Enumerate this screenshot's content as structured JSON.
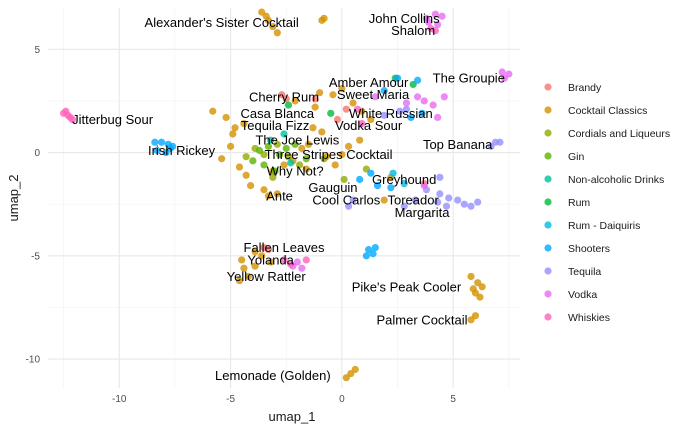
{
  "chart_data": {
    "type": "scatter",
    "title": "",
    "xlabel": "umap_1",
    "ylabel": "umap_2",
    "xlim": [
      -13.2,
      8.0
    ],
    "ylim": [
      -11.4,
      7.0
    ],
    "x_ticks": [
      -10,
      -5,
      0,
      5
    ],
    "y_ticks": [
      -10,
      -5,
      0,
      5
    ],
    "x_tick_labels": [
      "-10",
      "-5",
      "0",
      "5"
    ],
    "y_tick_labels": [
      "-10",
      "-5",
      "0",
      "5"
    ],
    "grid": true,
    "legend_position": "right",
    "series": [
      {
        "name": "Brandy",
        "color": "#F8766D",
        "points": [
          [
            -2.7,
            2.8
          ],
          [
            -2.5,
            2.6
          ],
          [
            -3.5,
            -4.6
          ],
          [
            -3.3,
            -4.7
          ],
          [
            -1.2,
            2.6
          ],
          [
            3.7,
            -1.5
          ],
          [
            -0.2,
            1.6
          ],
          [
            0.2,
            2.1
          ]
        ]
      },
      {
        "name": "Cocktail Classics",
        "color": "#D39200",
        "points": [
          [
            -3.6,
            6.8
          ],
          [
            -3.4,
            6.6
          ],
          [
            -3.3,
            6.4
          ],
          [
            -3.1,
            6.1
          ],
          [
            -2.9,
            5.8
          ],
          [
            -0.9,
            6.4
          ],
          [
            -0.8,
            6.5
          ],
          [
            -5.8,
            2.0
          ],
          [
            -5.2,
            1.7
          ],
          [
            -4.8,
            1.2
          ],
          [
            -4.4,
            1.4
          ],
          [
            -4.9,
            0.9
          ],
          [
            -5.0,
            0.3
          ],
          [
            -5.4,
            -0.3
          ],
          [
            -4.6,
            -0.7
          ],
          [
            -4.3,
            -1.1
          ],
          [
            -4.1,
            -1.6
          ],
          [
            -3.5,
            -1.8
          ],
          [
            -3.3,
            -2.1
          ],
          [
            -2.9,
            -2.0
          ],
          [
            -3.1,
            -0.9
          ],
          [
            -2.6,
            -0.6
          ],
          [
            -2.2,
            -0.4
          ],
          [
            -1.8,
            0.2
          ],
          [
            -1.5,
            0.4
          ],
          [
            -1.3,
            1.2
          ],
          [
            -0.9,
            1.0
          ],
          [
            -1.2,
            2.2
          ],
          [
            -2.1,
            2.5
          ],
          [
            -1.0,
            2.9
          ],
          [
            -0.4,
            2.8
          ],
          [
            0.0,
            3.1
          ],
          [
            0.5,
            2.4
          ],
          [
            0.9,
            2.0
          ],
          [
            1.3,
            1.6
          ],
          [
            0.8,
            0.6
          ],
          [
            0.3,
            0.3
          ],
          [
            0.0,
            -0.1
          ],
          [
            -0.3,
            -0.6
          ],
          [
            -0.7,
            -0.2
          ],
          [
            -1.6,
            -0.8
          ],
          [
            -4.5,
            -5.2
          ],
          [
            -4.4,
            -5.6
          ],
          [
            -4.2,
            -6.0
          ],
          [
            -3.9,
            -5.5
          ],
          [
            -3.6,
            -5.0
          ],
          [
            -3.2,
            -5.3
          ],
          [
            -3.9,
            -4.8
          ],
          [
            -4.6,
            -6.2
          ],
          [
            5.8,
            -6.0
          ],
          [
            6.1,
            -6.3
          ],
          [
            6.3,
            -6.5
          ],
          [
            6.0,
            -6.8
          ],
          [
            5.9,
            -6.6
          ],
          [
            6.2,
            -7.0
          ],
          [
            5.8,
            -8.1
          ],
          [
            6.0,
            -7.9
          ],
          [
            0.4,
            -10.7
          ],
          [
            0.6,
            -10.5
          ],
          [
            0.2,
            -10.9
          ],
          [
            1.9,
            -2.3
          ],
          [
            2.2,
            -1.2
          ]
        ]
      },
      {
        "name": "Cordials and Liqueurs",
        "color": "#93AA00",
        "points": [
          [
            -3.9,
            0.2
          ],
          [
            -3.5,
            -0.1
          ],
          [
            -2.9,
            0.4
          ],
          [
            -2.4,
            -0.2
          ],
          [
            -1.9,
            -0.6
          ],
          [
            -0.8,
            -0.3
          ],
          [
            0.1,
            -1.3
          ],
          [
            -4.3,
            -0.2
          ],
          [
            -3.1,
            -1.2
          ],
          [
            1.1,
            -0.8
          ]
        ]
      },
      {
        "name": "Gin",
        "color": "#5BB300",
        "points": [
          [
            -3.7,
            0.1
          ],
          [
            -3.3,
            0.3
          ],
          [
            -2.8,
            -0.1
          ],
          [
            -2.5,
            0.2
          ],
          [
            -2.1,
            0.4
          ],
          [
            -3.5,
            -0.6
          ],
          [
            -3.0,
            -0.9
          ],
          [
            -1.6,
            -0.3
          ],
          [
            -4.0,
            -0.4
          ]
        ]
      },
      {
        "name": "Non-alcoholic Drinks",
        "color": "#00C19F",
        "points": [
          [
            -3.2,
            0.6
          ],
          [
            -2.6,
            0.9
          ],
          [
            -2.3,
            -0.5
          ]
        ]
      },
      {
        "name": "Rum",
        "color": "#00BA38",
        "points": [
          [
            -2.4,
            2.3
          ],
          [
            2.4,
            3.6
          ],
          [
            3.2,
            3.3
          ],
          [
            -0.5,
            1.9
          ]
        ]
      },
      {
        "name": "Rum - Daiquiris",
        "color": "#00B9E3",
        "points": [
          [
            2.3,
            -1.0
          ],
          [
            2.8,
            -1.5
          ]
        ]
      },
      {
        "name": "Shooters",
        "color": "#00A9FF",
        "points": [
          [
            -8.4,
            0.5
          ],
          [
            -8.1,
            0.5
          ],
          [
            -7.8,
            0.4
          ],
          [
            -7.6,
            0.3
          ],
          [
            -8.3,
            0.1
          ],
          [
            -7.9,
            0.0
          ],
          [
            -7.7,
            0.2
          ],
          [
            1.2,
            -4.7
          ],
          [
            1.4,
            -4.9
          ],
          [
            1.5,
            -4.6
          ],
          [
            1.1,
            -5.0
          ],
          [
            0.8,
            -1.3
          ],
          [
            1.3,
            -1.0
          ],
          [
            1.6,
            -1.6
          ],
          [
            2.2,
            -1.7
          ],
          [
            1.9,
            3.0
          ],
          [
            2.5,
            3.6
          ],
          [
            3.4,
            3.5
          ],
          [
            3.1,
            1.7
          ],
          [
            3.6,
            1.9
          ]
        ]
      },
      {
        "name": "Tequila",
        "color": "#9590FF",
        "points": [
          [
            4.4,
            -2.0
          ],
          [
            4.8,
            -2.2
          ],
          [
            5.2,
            -2.3
          ],
          [
            5.5,
            -2.5
          ],
          [
            5.8,
            -2.6
          ],
          [
            6.1,
            -2.4
          ],
          [
            4.3,
            -2.4
          ],
          [
            4.7,
            -2.6
          ],
          [
            3.3,
            -2.3
          ],
          [
            2.8,
            -2.6
          ],
          [
            0.3,
            -2.6
          ],
          [
            0.5,
            -2.3
          ],
          [
            6.9,
            0.5
          ],
          [
            7.1,
            0.5
          ],
          [
            6.7,
            0.3
          ],
          [
            2.6,
            2.0
          ],
          [
            2.9,
            2.1
          ],
          [
            1.9,
            1.8
          ],
          [
            4.4,
            -1.2
          ],
          [
            3.8,
            -1.8
          ]
        ]
      },
      {
        "name": "Vodka",
        "color": "#E76BF3",
        "points": [
          [
            3.8,
            6.5
          ],
          [
            4.2,
            6.7
          ],
          [
            4.5,
            6.6
          ],
          [
            3.9,
            6.3
          ],
          [
            4.3,
            6.2
          ],
          [
            7.3,
            3.6
          ],
          [
            7.5,
            3.8
          ],
          [
            7.2,
            3.9
          ],
          [
            3.4,
            2.7
          ],
          [
            3.7,
            2.5
          ],
          [
            4.1,
            2.3
          ],
          [
            4.6,
            2.7
          ],
          [
            2.9,
            2.4
          ],
          [
            1.5,
            2.7
          ],
          [
            4.3,
            1.7
          ],
          [
            -2.2,
            -5.5
          ],
          [
            -2.0,
            -5.3
          ],
          [
            -1.8,
            -5.6
          ],
          [
            3.7,
            -1.6
          ]
        ]
      },
      {
        "name": "Whiskies",
        "color": "#FF62BC",
        "points": [
          [
            -12.5,
            1.9
          ],
          [
            -12.3,
            1.8
          ],
          [
            -12.2,
            1.7
          ],
          [
            -12.4,
            2.0
          ],
          [
            -12.1,
            1.6
          ],
          [
            4.0,
            6.0
          ],
          [
            4.2,
            5.9
          ],
          [
            -2.3,
            -5.4
          ],
          [
            -1.6,
            -5.2
          ],
          [
            -2.6,
            -5.2
          ],
          [
            0.7,
            2.1
          ],
          [
            0.9,
            1.4
          ]
        ]
      }
    ],
    "annotations": [
      {
        "text": "Alexander's Sister Cocktail",
        "x": -5.4,
        "y": 6.3
      },
      {
        "text": "John Collins",
        "x": 2.8,
        "y": 6.5
      },
      {
        "text": "Shalom",
        "x": 3.2,
        "y": 5.9
      },
      {
        "text": "Amber Amour",
        "x": 1.2,
        "y": 3.4
      },
      {
        "text": "The Groupie",
        "x": 5.7,
        "y": 3.6
      },
      {
        "text": "Cherry Rum",
        "x": -2.6,
        "y": 2.7
      },
      {
        "text": "Sweet Maria",
        "x": 1.4,
        "y": 2.8
      },
      {
        "text": "White Russian",
        "x": 2.2,
        "y": 1.9
      },
      {
        "text": "Casa Blanca",
        "x": -2.9,
        "y": 1.9
      },
      {
        "text": "Tequila Fizz",
        "x": -3.0,
        "y": 1.3
      },
      {
        "text": "Vodka Sour",
        "x": 1.2,
        "y": 1.3
      },
      {
        "text": "Jitterbug Sour",
        "x": -10.3,
        "y": 1.6
      },
      {
        "text": "The Joe Lewis",
        "x": -2.0,
        "y": 0.6
      },
      {
        "text": "Top Banana",
        "x": 5.2,
        "y": 0.4
      },
      {
        "text": "Irish Rickey",
        "x": -7.2,
        "y": 0.1
      },
      {
        "text": "Three Stripes Cocktail",
        "x": -0.6,
        "y": -0.1
      },
      {
        "text": "Why Not?",
        "x": -2.1,
        "y": -0.9
      },
      {
        "text": "Greyhound",
        "x": 2.8,
        "y": -1.3
      },
      {
        "text": "Gauguin",
        "x": -0.4,
        "y": -1.7
      },
      {
        "text": "Ante",
        "x": -2.8,
        "y": -2.1
      },
      {
        "text": "Cool Carlos",
        "x": 0.2,
        "y": -2.3
      },
      {
        "text": "Toreador",
        "x": 3.2,
        "y": -2.3
      },
      {
        "text": "Margarita",
        "x": 3.6,
        "y": -2.9
      },
      {
        "text": "Fallen Leaves",
        "x": -2.6,
        "y": -4.6
      },
      {
        "text": "Yolanda",
        "x": -3.2,
        "y": -5.2
      },
      {
        "text": "Yellow Rattler",
        "x": -3.4,
        "y": -6.0
      },
      {
        "text": "Pike's Peak Cooler",
        "x": 2.9,
        "y": -6.5
      },
      {
        "text": "Palmer Cocktail",
        "x": 3.6,
        "y": -8.1
      },
      {
        "text": "Lemonade (Golden)",
        "x": -3.1,
        "y": -10.8
      }
    ]
  }
}
